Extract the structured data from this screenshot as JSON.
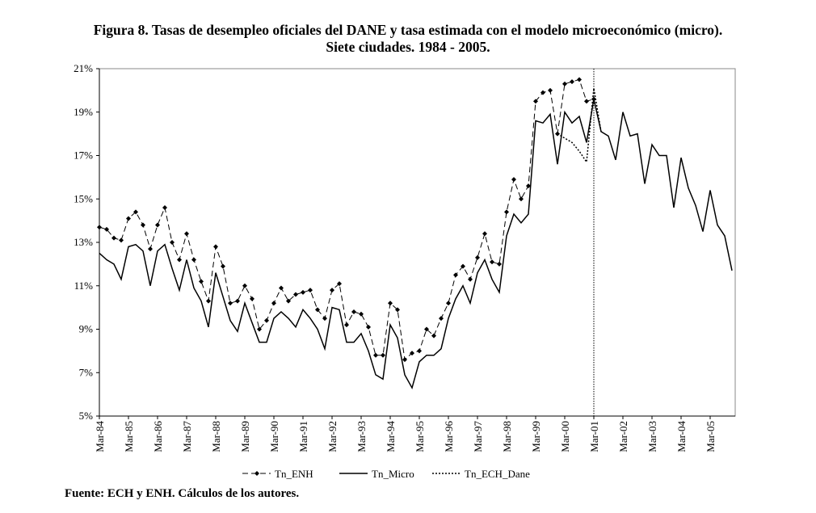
{
  "chart_data": {
    "type": "line",
    "title": "Figura 8. Tasas de desempleo oficiales del DANE y tasa estimada con el modelo microeconómico (micro).",
    "subtitle": "Siete ciudades. 1984 - 2005.",
    "xlabel": "",
    "ylabel": "",
    "ylim": [
      5,
      21
    ],
    "yticks": [
      "5%",
      "7%",
      "9%",
      "11%",
      "13%",
      "15%",
      "17%",
      "19%",
      "21%"
    ],
    "x_start": "Mar-84",
    "frequency": "quarterly",
    "xticks": [
      "Mar-84",
      "Mar-85",
      "Mar-86",
      "Mar-87",
      "Mar-88",
      "Mar-89",
      "Mar-90",
      "Mar-91",
      "Mar-92",
      "Mar-93",
      "Mar-94",
      "Mar-95",
      "Mar-96",
      "Mar-97",
      "Mar-98",
      "Mar-99",
      "Mar-00",
      "Mar-01",
      "Mar-02",
      "Mar-03",
      "Mar-04",
      "Mar-05"
    ],
    "grid": false,
    "legend_position": "bottom",
    "annotations": [
      {
        "type": "vertical-dotted-line",
        "x": "Mar-01"
      }
    ],
    "series": [
      {
        "name": "Tn_ENH",
        "style": "dashed-diamond",
        "start_index": 0,
        "values": [
          13.7,
          13.6,
          13.2,
          13.1,
          14.1,
          14.4,
          13.8,
          12.7,
          13.8,
          14.6,
          13.0,
          12.2,
          13.4,
          12.2,
          11.2,
          10.3,
          12.8,
          11.9,
          10.2,
          10.3,
          11.0,
          10.4,
          9.0,
          9.4,
          10.2,
          10.9,
          10.3,
          10.6,
          10.7,
          10.8,
          9.9,
          9.5,
          10.8,
          11.1,
          9.2,
          9.8,
          9.7,
          9.1,
          7.8,
          7.8,
          10.2,
          9.9,
          7.6,
          7.9,
          8.0,
          9.0,
          8.7,
          9.5,
          10.2,
          11.5,
          11.9,
          11.3,
          12.3,
          13.4,
          12.1,
          12.0,
          14.4,
          15.9,
          15.0,
          15.6,
          19.5,
          19.9,
          20.0,
          18.0,
          20.3,
          20.4,
          20.5,
          19.5,
          19.6
        ]
      },
      {
        "name": "Tn_Micro",
        "style": "solid",
        "start_index": 0,
        "values": [
          12.5,
          12.2,
          12.0,
          11.3,
          12.8,
          12.9,
          12.6,
          11.0,
          12.6,
          12.9,
          11.8,
          10.8,
          12.2,
          10.9,
          10.3,
          9.1,
          11.6,
          10.5,
          9.4,
          8.9,
          10.2,
          9.3,
          8.4,
          8.4,
          9.5,
          9.8,
          9.5,
          9.1,
          9.9,
          9.5,
          9.0,
          8.1,
          10.0,
          9.9,
          8.4,
          8.4,
          8.8,
          8.0,
          6.9,
          6.7,
          9.2,
          8.6,
          6.9,
          6.3,
          7.5,
          7.8,
          7.8,
          8.1,
          9.5,
          10.4,
          11.0,
          10.2,
          11.6,
          12.2,
          11.3,
          10.7,
          13.3,
          14.3,
          13.9,
          14.3,
          18.6,
          18.5,
          18.9,
          16.6,
          19.0,
          18.5,
          18.8,
          17.6,
          19.6,
          18.1,
          17.9,
          16.8,
          19.0,
          17.9,
          18.0,
          15.7,
          17.5,
          17.0,
          17.0,
          14.6,
          16.9,
          15.5,
          14.7,
          13.5,
          15.4,
          13.8,
          13.3,
          11.7
        ]
      },
      {
        "name": "Tn_ECH_Dane",
        "style": "dotted",
        "start_index": 63,
        "values": [
          18.0,
          17.8,
          17.6,
          17.2,
          16.7,
          20.1,
          18.1
        ]
      }
    ],
    "source": "Fuente: ECH y ENH. Cálculos de los autores."
  }
}
